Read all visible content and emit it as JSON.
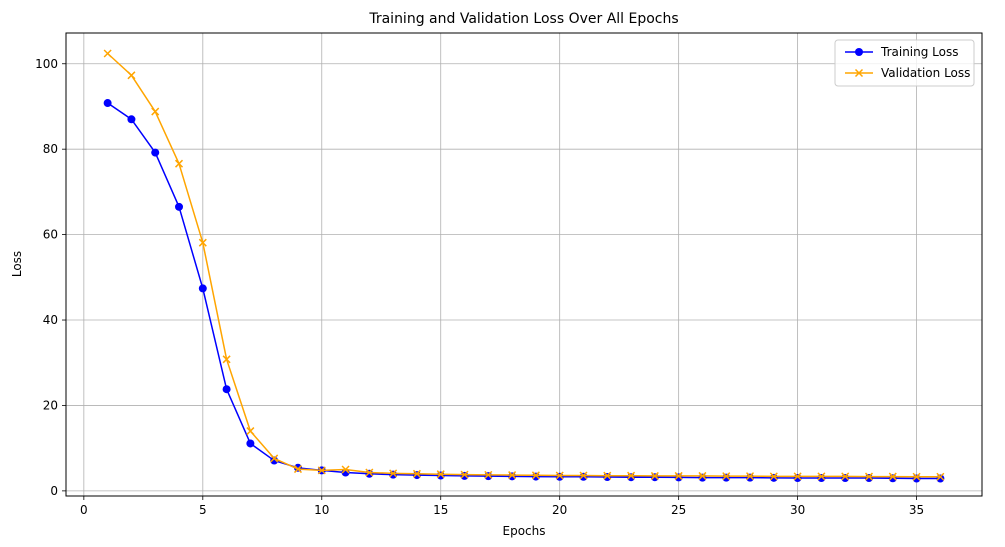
{
  "chart_data": {
    "type": "line",
    "title": "Training and Validation Loss Over All Epochs",
    "xlabel": "Epochs",
    "ylabel": "Loss",
    "xlim": [
      -0.75,
      37.75
    ],
    "ylim": [
      -1.2,
      107.2
    ],
    "xticks": [
      0,
      5,
      10,
      15,
      20,
      25,
      30,
      35
    ],
    "yticks": [
      0,
      20,
      40,
      60,
      80,
      100
    ],
    "grid": true,
    "legend_position": "top-right",
    "x": [
      1,
      2,
      3,
      4,
      5,
      6,
      7,
      8,
      9,
      10,
      11,
      12,
      13,
      14,
      15,
      16,
      17,
      18,
      19,
      20,
      21,
      22,
      23,
      24,
      25,
      26,
      27,
      28,
      29,
      30,
      31,
      32,
      33,
      34,
      35,
      36
    ],
    "series": [
      {
        "name": "Training Loss",
        "color": "#0000ff",
        "marker": "circle",
        "values": [
          90.8,
          87.0,
          79.2,
          66.5,
          47.4,
          23.8,
          11.1,
          7.1,
          5.4,
          4.8,
          4.3,
          4.0,
          3.8,
          3.7,
          3.6,
          3.5,
          3.45,
          3.4,
          3.35,
          3.3,
          3.3,
          3.25,
          3.2,
          3.2,
          3.15,
          3.1,
          3.1,
          3.1,
          3.05,
          3.0,
          3.0,
          3.0,
          3.0,
          2.95,
          2.9,
          2.9
        ]
      },
      {
        "name": "Validation Loss",
        "color": "#ffa500",
        "marker": "x",
        "values": [
          102.4,
          97.3,
          88.8,
          76.6,
          58.1,
          30.8,
          14.0,
          7.6,
          5.1,
          4.8,
          5.0,
          4.3,
          4.1,
          4.0,
          3.9,
          3.8,
          3.75,
          3.7,
          3.65,
          3.6,
          3.6,
          3.55,
          3.55,
          3.5,
          3.5,
          3.5,
          3.45,
          3.45,
          3.4,
          3.4,
          3.4,
          3.4,
          3.35,
          3.35,
          3.3,
          3.3
        ]
      }
    ]
  }
}
